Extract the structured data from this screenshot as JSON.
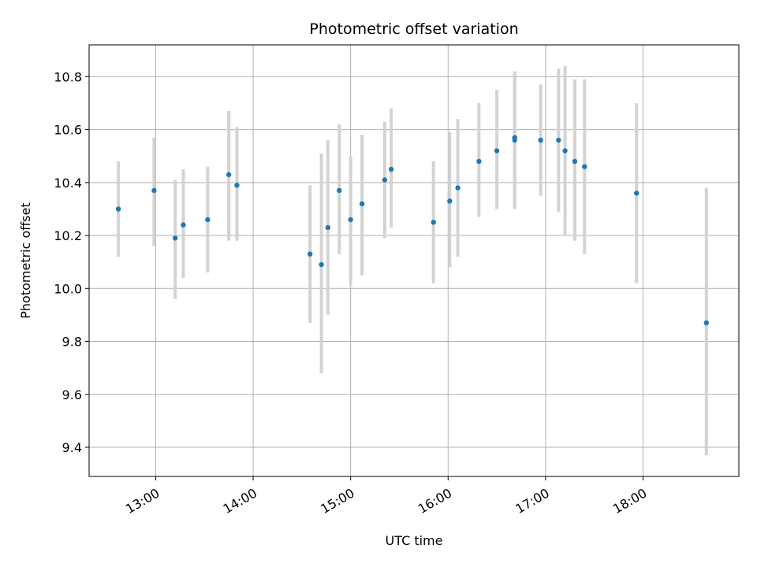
{
  "chart_data": {
    "type": "scatter",
    "title": "Photometric offset variation",
    "xlabel": "UTC time",
    "ylabel": "Photometric offset",
    "xlim": [
      "12:19",
      "18:59"
    ],
    "ylim": [
      9.29,
      10.92
    ],
    "grid": true,
    "x_ticks": [
      "13:00",
      "14:00",
      "15:00",
      "16:00",
      "17:00",
      "18:00"
    ],
    "y_ticks": [
      9.4,
      9.6,
      9.8,
      10.0,
      10.2,
      10.4,
      10.6,
      10.8
    ],
    "colors": {
      "marker": "#1f77b4",
      "errorbar": "#d3d3d3",
      "grid": "#b0b0b0"
    },
    "points": [
      {
        "time": "12:37",
        "y": 10.3,
        "yerr_low": 10.12,
        "yerr_high": 10.48
      },
      {
        "time": "12:59",
        "y": 10.37,
        "yerr_low": 10.16,
        "yerr_high": 10.57
      },
      {
        "time": "13:12",
        "y": 10.19,
        "yerr_low": 9.96,
        "yerr_high": 10.41
      },
      {
        "time": "13:17",
        "y": 10.24,
        "yerr_low": 10.04,
        "yerr_high": 10.45
      },
      {
        "time": "13:32",
        "y": 10.26,
        "yerr_low": 10.06,
        "yerr_high": 10.46
      },
      {
        "time": "13:45",
        "y": 10.43,
        "yerr_low": 10.18,
        "yerr_high": 10.67
      },
      {
        "time": "13:50",
        "y": 10.39,
        "yerr_low": 10.18,
        "yerr_high": 10.61
      },
      {
        "time": "14:35",
        "y": 10.13,
        "yerr_low": 9.87,
        "yerr_high": 10.39
      },
      {
        "time": "14:42",
        "y": 10.09,
        "yerr_low": 9.68,
        "yerr_high": 10.51
      },
      {
        "time": "14:46",
        "y": 10.23,
        "yerr_low": 9.9,
        "yerr_high": 10.56
      },
      {
        "time": "14:53",
        "y": 10.37,
        "yerr_low": 10.13,
        "yerr_high": 10.62
      },
      {
        "time": "15:00",
        "y": 10.26,
        "yerr_low": 10.01,
        "yerr_high": 10.5
      },
      {
        "time": "15:07",
        "y": 10.32,
        "yerr_low": 10.05,
        "yerr_high": 10.58
      },
      {
        "time": "15:21",
        "y": 10.41,
        "yerr_low": 10.19,
        "yerr_high": 10.63
      },
      {
        "time": "15:25",
        "y": 10.45,
        "yerr_low": 10.23,
        "yerr_high": 10.68
      },
      {
        "time": "15:51",
        "y": 10.25,
        "yerr_low": 10.02,
        "yerr_high": 10.48
      },
      {
        "time": "16:01",
        "y": 10.33,
        "yerr_low": 10.08,
        "yerr_high": 10.59
      },
      {
        "time": "16:06",
        "y": 10.38,
        "yerr_low": 10.12,
        "yerr_high": 10.64
      },
      {
        "time": "16:19",
        "y": 10.48,
        "yerr_low": 10.27,
        "yerr_high": 10.7
      },
      {
        "time": "16:30",
        "y": 10.52,
        "yerr_low": 10.3,
        "yerr_high": 10.75
      },
      {
        "time": "16:41",
        "y": 10.56,
        "yerr_low": 10.3,
        "yerr_high": 10.82
      },
      {
        "time": "16:41",
        "y": 10.57,
        "yerr_low": 10.3,
        "yerr_high": 10.82
      },
      {
        "time": "16:57",
        "y": 10.56,
        "yerr_low": 10.35,
        "yerr_high": 10.77
      },
      {
        "time": "17:08",
        "y": 10.56,
        "yerr_low": 10.29,
        "yerr_high": 10.83
      },
      {
        "time": "17:12",
        "y": 10.52,
        "yerr_low": 10.2,
        "yerr_high": 10.84
      },
      {
        "time": "17:18",
        "y": 10.48,
        "yerr_low": 10.18,
        "yerr_high": 10.79
      },
      {
        "time": "17:24",
        "y": 10.46,
        "yerr_low": 10.13,
        "yerr_high": 10.79
      },
      {
        "time": "17:56",
        "y": 10.36,
        "yerr_low": 10.02,
        "yerr_high": 10.7
      },
      {
        "time": "18:39",
        "y": 9.87,
        "yerr_low": 9.37,
        "yerr_high": 10.38
      }
    ]
  }
}
